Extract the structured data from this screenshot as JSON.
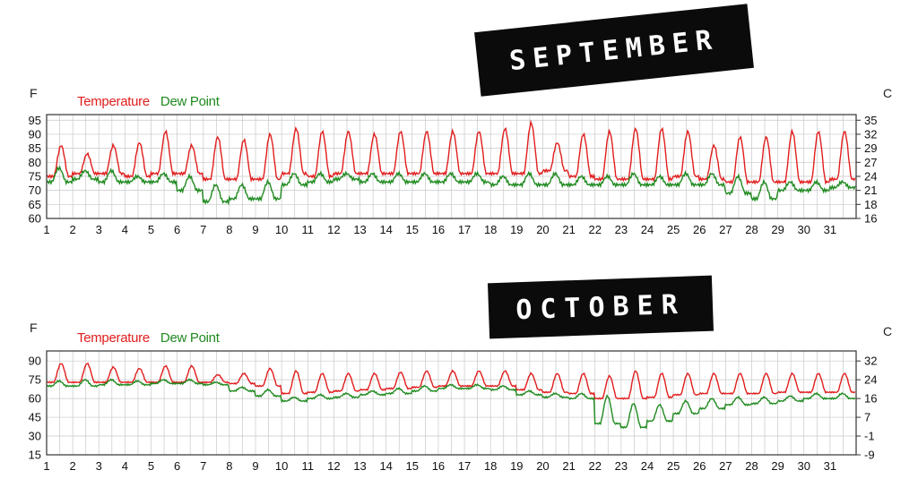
{
  "banners": {
    "september": "SEPTEMBER",
    "october": "OCTOBER"
  },
  "colors": {
    "temperature": "#e11d1d",
    "dew_point": "#1f8a1f",
    "grid": "#c8c8c8",
    "frame": "#333333"
  },
  "chart_data": [
    {
      "type": "line",
      "month": "September",
      "left_unit": "F",
      "right_unit": "C",
      "legend_placement": "top-left",
      "grid": true,
      "x_ticks": [
        1,
        2,
        3,
        4,
        5,
        6,
        7,
        8,
        9,
        10,
        11,
        12,
        13,
        14,
        15,
        16,
        17,
        18,
        19,
        20,
        21,
        22,
        23,
        24,
        25,
        26,
        27,
        28,
        29,
        30,
        31
      ],
      "xlim": [
        1,
        32
      ],
      "y_ticks": [
        60,
        65,
        70,
        75,
        80,
        85,
        90,
        95
      ],
      "ylim": [
        60,
        97
      ],
      "y2_ticks": [
        16,
        18,
        21,
        24,
        27,
        29,
        32,
        35
      ],
      "series": [
        {
          "name": "Temperature",
          "daily_max": [
            86,
            83,
            86,
            87,
            91,
            86,
            89,
            88,
            90,
            92,
            91,
            91,
            90,
            91,
            91,
            91,
            91,
            92,
            94,
            87,
            90,
            91,
            92,
            92,
            91,
            86,
            89,
            89,
            91,
            91,
            91
          ],
          "daily_min": [
            75,
            76,
            76,
            75,
            76,
            76,
            74,
            74,
            74,
            76,
            75,
            76,
            76,
            76,
            76,
            76,
            76,
            76,
            76,
            77,
            75,
            74,
            74,
            74,
            75,
            74,
            73,
            73,
            73,
            73,
            74
          ]
        },
        {
          "name": "Dew Point",
          "daily_max": [
            78,
            77,
            77,
            75,
            76,
            75,
            72,
            72,
            73,
            76,
            76,
            76,
            76,
            76,
            76,
            76,
            76,
            75,
            76,
            76,
            75,
            75,
            76,
            75,
            76,
            76,
            75,
            73,
            73,
            73,
            73
          ],
          "daily_min": [
            73,
            74,
            73,
            73,
            73,
            70,
            66,
            67,
            67,
            72,
            73,
            74,
            73,
            73,
            73,
            73,
            73,
            72,
            72,
            72,
            72,
            72,
            72,
            72,
            72,
            72,
            69,
            67,
            70,
            70,
            71
          ]
        }
      ]
    },
    {
      "type": "line",
      "month": "October",
      "left_unit": "F",
      "right_unit": "C",
      "legend_placement": "top-left",
      "grid": true,
      "x_ticks": [
        1,
        2,
        3,
        4,
        5,
        6,
        7,
        8,
        9,
        10,
        11,
        12,
        13,
        14,
        15,
        16,
        17,
        18,
        19,
        20,
        21,
        22,
        23,
        24,
        25,
        26,
        27,
        28,
        29,
        30,
        31
      ],
      "xlim": [
        1,
        32
      ],
      "y_ticks": [
        15,
        30,
        45,
        60,
        75,
        90
      ],
      "ylim": [
        15,
        98
      ],
      "y2_ticks": [
        -9,
        -1,
        7,
        16,
        24,
        32
      ],
      "series": [
        {
          "name": "Temperature",
          "daily_max": [
            88,
            88,
            85,
            84,
            86,
            86,
            79,
            80,
            84,
            82,
            80,
            80,
            80,
            81,
            82,
            82,
            82,
            82,
            80,
            80,
            80,
            78,
            82,
            80,
            80,
            80,
            80,
            80,
            80,
            80,
            80
          ],
          "daily_min": [
            73,
            73,
            73,
            73,
            73,
            73,
            73,
            72,
            70,
            64,
            65,
            66,
            67,
            68,
            69,
            70,
            70,
            70,
            67,
            65,
            64,
            60,
            60,
            61,
            63,
            64,
            64,
            64,
            65,
            65,
            65
          ]
        },
        {
          "name": "Dew Point",
          "daily_max": [
            74,
            75,
            75,
            74,
            75,
            75,
            73,
            69,
            67,
            61,
            63,
            64,
            66,
            68,
            70,
            71,
            71,
            70,
            66,
            64,
            64,
            62,
            56,
            55,
            58,
            60,
            61,
            61,
            62,
            64,
            64
          ],
          "daily_min": [
            70,
            70,
            71,
            71,
            72,
            72,
            71,
            66,
            62,
            58,
            60,
            61,
            63,
            64,
            66,
            68,
            68,
            67,
            63,
            61,
            60,
            40,
            37,
            42,
            48,
            52,
            55,
            56,
            58,
            60,
            60
          ]
        }
      ]
    }
  ]
}
